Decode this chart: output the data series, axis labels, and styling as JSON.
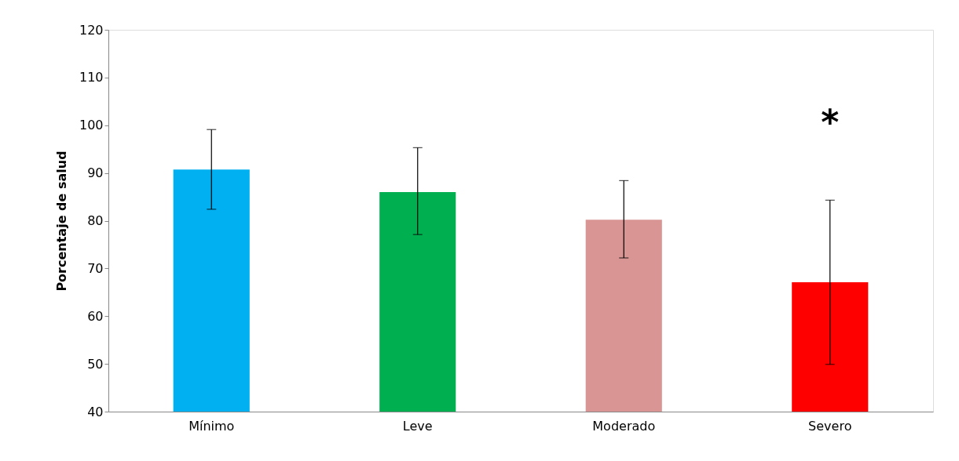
{
  "chart_data": {
    "type": "bar",
    "ylabel": "Porcentaje de salud",
    "categories": [
      "Mínimo",
      "Leve",
      "Moderado",
      "Severo"
    ],
    "values": [
      90.7,
      86.0,
      80.2,
      67.1
    ],
    "colors": [
      "#00b0f0",
      "#00b050",
      "#d99594",
      "#ff0000"
    ],
    "errors": [
      [
        82.4,
        99.1
      ],
      [
        77.1,
        95.3
      ],
      [
        72.2,
        88.4
      ],
      [
        49.9,
        84.3
      ]
    ],
    "annotations": [
      "*"
    ],
    "ylim": [
      40,
      120
    ],
    "yticks": [
      40,
      50,
      60,
      70,
      80,
      90,
      100,
      110,
      120
    ],
    "grid": false
  }
}
